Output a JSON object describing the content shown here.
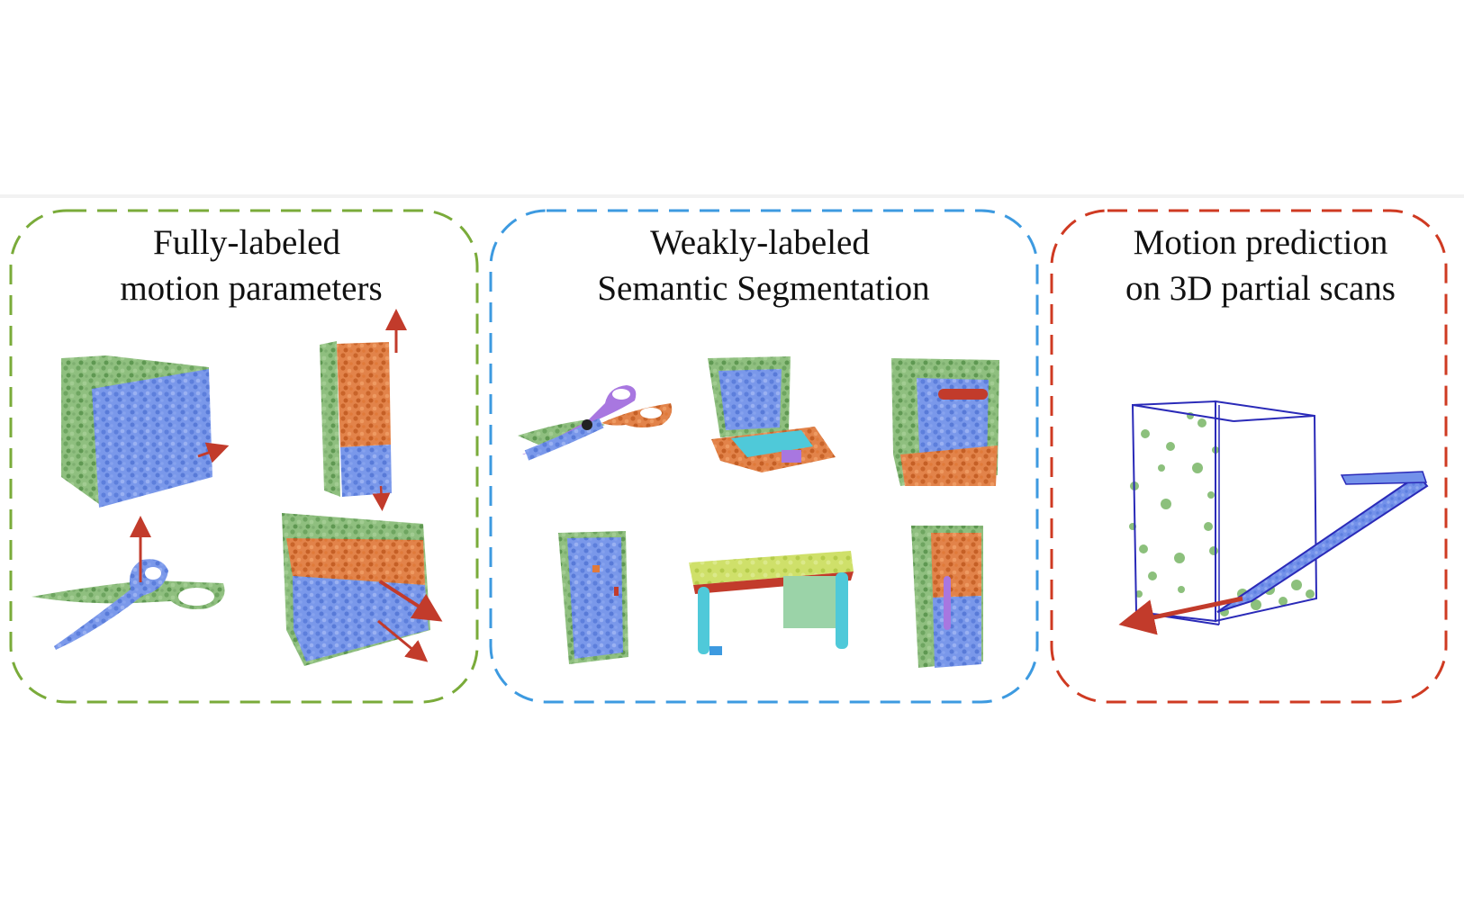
{
  "panels": [
    {
      "id": "fully",
      "title_line1": "Fully-labeled",
      "title_line2": "motion parameters",
      "border_color": "#7aab3a"
    },
    {
      "id": "weakly",
      "title_line1": "Weakly-labeled",
      "title_line2": "Semantic Segmentation",
      "border_color": "#3d9ae0"
    },
    {
      "id": "motion",
      "title_line1": "Motion prediction",
      "title_line2": "on 3D partial scans",
      "border_color": "#cf3a22"
    }
  ],
  "colors": {
    "green_points": "#7fb071",
    "blue_points": "#6f8fe6",
    "orange_points": "#e07a3a",
    "red_arrow": "#c23b2b",
    "purple_part": "#a877e0",
    "cyan_part": "#4fc9d9",
    "yellow_part": "#c9df5f",
    "box_outline": "#2a2ab8"
  },
  "objects": [
    "cabinet-icon",
    "tall-fridge-icon",
    "scissors-icon",
    "dresser-icon",
    "scissors-icon",
    "laptop-icon",
    "cabinet-icon",
    "door-icon",
    "desk-icon",
    "fridge-icon",
    "dishwasher-icon"
  ]
}
